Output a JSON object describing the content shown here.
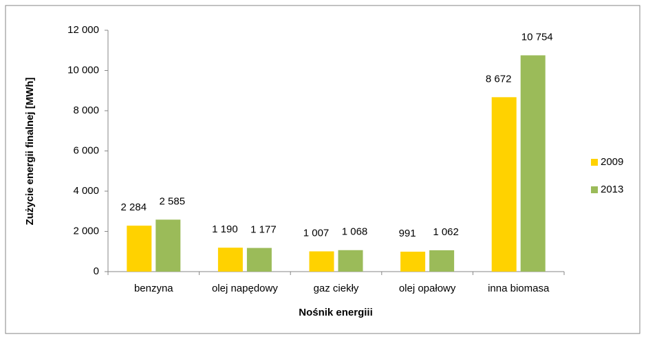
{
  "chart_data": {
    "type": "bar",
    "y_label": "Zużycie energii finalnej [MWh]",
    "x_label": "Nośnik energiii",
    "categories": [
      "benzyna",
      "olej napędowy",
      "gaz ciekły",
      "olej opałowy",
      "inna biomasa"
    ],
    "series": [
      {
        "name": "2009",
        "color": "#ffd200",
        "values": [
          2284,
          1190,
          1007,
          991,
          8672
        ],
        "value_labels": [
          "2 284",
          "1 190",
          "1 007",
          "991",
          "8 672"
        ]
      },
      {
        "name": "2013",
        "color": "#9bbb59",
        "values": [
          2585,
          1177,
          1068,
          1062,
          10754
        ],
        "value_labels": [
          "2 585",
          "1 177",
          "1 068",
          "1 062",
          "10 754"
        ]
      }
    ],
    "ylim": [
      0,
      12000
    ],
    "yticks": [
      0,
      {
        "value": 2000,
        "label": "2 000"
      },
      {
        "value": 4000,
        "label": "4 000"
      },
      {
        "value": 6000,
        "label": "6 000"
      },
      {
        "value": 8000,
        "label": "8 000"
      },
      {
        "value": 10000,
        "label": "10 000"
      },
      {
        "value": 12000,
        "label": "12 000"
      }
    ],
    "legend": "right"
  }
}
